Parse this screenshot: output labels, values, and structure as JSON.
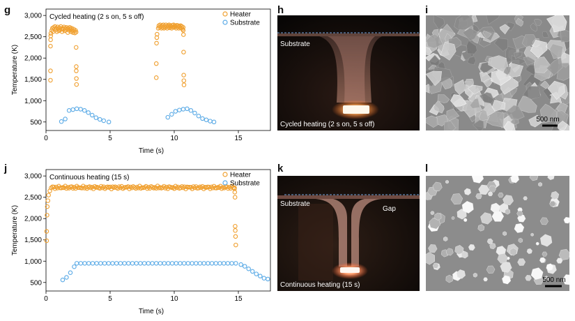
{
  "panels": {
    "g": "g",
    "h": "h",
    "i": "i",
    "j": "j",
    "k": "k",
    "l": "l"
  },
  "colors": {
    "heater": "#f0a030",
    "substrate": "#5aaae6",
    "photo_bg": "#0d0a08",
    "sem_bg": "#8e8e8e"
  },
  "chart_data": [
    {
      "type": "scatter",
      "title": "Cycled heating (2 s on, 5 s off)",
      "xlabel": "Time (s)",
      "ylabel": "Temperature (K)",
      "xlim": [
        0,
        17.5
      ],
      "ylim": [
        300,
        3150
      ],
      "xticks": [
        0,
        5,
        10,
        15
      ],
      "yticks": [
        500,
        1000,
        1500,
        2000,
        2500,
        3000
      ],
      "ytick_labels": [
        "500",
        "1,000",
        "1,500",
        "2,000",
        "2,500",
        "3,000"
      ],
      "legend": "top-right",
      "grid": false,
      "series": [
        {
          "name": "Heater",
          "points": [
            [
              0.35,
              1480
            ],
            [
              0.35,
              1700
            ],
            [
              0.35,
              2280
            ],
            [
              0.36,
              2430
            ],
            [
              0.37,
              2520
            ],
            [
              0.38,
              2580
            ],
            [
              0.45,
              2650
            ],
            [
              0.5,
              2700
            ],
            [
              0.55,
              2620
            ],
            [
              0.6,
              2720
            ],
            [
              0.65,
              2680
            ],
            [
              0.7,
              2740
            ],
            [
              0.75,
              2660
            ],
            [
              0.8,
              2700
            ],
            [
              0.85,
              2620
            ],
            [
              0.9,
              2730
            ],
            [
              0.95,
              2680
            ],
            [
              1.0,
              2640
            ],
            [
              1.05,
              2710
            ],
            [
              1.1,
              2660
            ],
            [
              1.15,
              2740
            ],
            [
              1.2,
              2690
            ],
            [
              1.25,
              2620
            ],
            [
              1.3,
              2700
            ],
            [
              1.35,
              2680
            ],
            [
              1.4,
              2730
            ],
            [
              1.45,
              2640
            ],
            [
              1.5,
              2700
            ],
            [
              1.55,
              2660
            ],
            [
              1.6,
              2720
            ],
            [
              1.65,
              2680
            ],
            [
              1.7,
              2600
            ],
            [
              1.75,
              2700
            ],
            [
              1.8,
              2650
            ],
            [
              1.85,
              2720
            ],
            [
              1.9,
              2680
            ],
            [
              1.95,
              2620
            ],
            [
              2.0,
              2700
            ],
            [
              2.05,
              2650
            ],
            [
              2.1,
              2600
            ],
            [
              2.15,
              2680
            ],
            [
              2.2,
              2640
            ],
            [
              2.25,
              2590
            ],
            [
              2.3,
              2650
            ],
            [
              2.35,
              2610
            ],
            [
              2.35,
              2250
            ],
            [
              2.36,
              1800
            ],
            [
              2.36,
              1700
            ],
            [
              2.37,
              1520
            ],
            [
              2.38,
              1380
            ],
            [
              8.6,
              1540
            ],
            [
              8.6,
              1870
            ],
            [
              8.62,
              2350
            ],
            [
              8.64,
              2480
            ],
            [
              8.66,
              2560
            ],
            [
              8.75,
              2700
            ],
            [
              8.8,
              2760
            ],
            [
              8.85,
              2720
            ],
            [
              8.9,
              2780
            ],
            [
              8.95,
              2740
            ],
            [
              9.0,
              2700
            ],
            [
              9.05,
              2760
            ],
            [
              9.1,
              2720
            ],
            [
              9.15,
              2780
            ],
            [
              9.2,
              2700
            ],
            [
              9.25,
              2750
            ],
            [
              9.3,
              2720
            ],
            [
              9.35,
              2780
            ],
            [
              9.4,
              2740
            ],
            [
              9.45,
              2700
            ],
            [
              9.5,
              2760
            ],
            [
              9.55,
              2730
            ],
            [
              9.6,
              2780
            ],
            [
              9.65,
              2710
            ],
            [
              9.7,
              2760
            ],
            [
              9.75,
              2740
            ],
            [
              9.8,
              2700
            ],
            [
              9.85,
              2770
            ],
            [
              9.9,
              2730
            ],
            [
              9.95,
              2780
            ],
            [
              10.0,
              2720
            ],
            [
              10.05,
              2760
            ],
            [
              10.1,
              2740
            ],
            [
              10.15,
              2700
            ],
            [
              10.2,
              2770
            ],
            [
              10.25,
              2730
            ],
            [
              10.3,
              2760
            ],
            [
              10.35,
              2700
            ],
            [
              10.4,
              2750
            ],
            [
              10.45,
              2720
            ],
            [
              10.5,
              2760
            ],
            [
              10.55,
              2700
            ],
            [
              10.6,
              2740
            ],
            [
              10.65,
              2680
            ],
            [
              10.7,
              2720
            ],
            [
              10.7,
              2650
            ],
            [
              10.72,
              2550
            ],
            [
              10.73,
              2140
            ],
            [
              10.74,
              1600
            ],
            [
              10.75,
              1470
            ],
            [
              10.76,
              1370
            ]
          ]
        },
        {
          "name": "Substrate",
          "points": [
            [
              1.2,
              510
            ],
            [
              1.5,
              570
            ],
            [
              1.8,
              770
            ],
            [
              2.1,
              790
            ],
            [
              2.4,
              810
            ],
            [
              2.7,
              800
            ],
            [
              3.0,
              770
            ],
            [
              3.3,
              720
            ],
            [
              3.6,
              660
            ],
            [
              3.9,
              600
            ],
            [
              4.2,
              560
            ],
            [
              4.5,
              530
            ],
            [
              4.9,
              500
            ],
            [
              9.5,
              610
            ],
            [
              9.8,
              680
            ],
            [
              10.1,
              750
            ],
            [
              10.4,
              780
            ],
            [
              10.7,
              800
            ],
            [
              11.0,
              810
            ],
            [
              11.3,
              770
            ],
            [
              11.6,
              710
            ],
            [
              11.9,
              640
            ],
            [
              12.2,
              580
            ],
            [
              12.5,
              550
            ],
            [
              12.8,
              520
            ],
            [
              13.1,
              500
            ]
          ]
        }
      ]
    },
    {
      "type": "scatter",
      "title": "Continuous heating (15 s)",
      "xlabel": "Time (s)",
      "ylabel": "Temperature (K)",
      "xlim": [
        0,
        17.5
      ],
      "ylim": [
        300,
        3150
      ],
      "xticks": [
        0,
        5,
        10,
        15
      ],
      "yticks": [
        500,
        1000,
        1500,
        2000,
        2500,
        3000
      ],
      "ytick_labels": [
        "500",
        "1,000",
        "1,500",
        "2,000",
        "2,500",
        "3,000"
      ],
      "legend": "top-right",
      "grid": false,
      "heater_plateau": {
        "x_start": 0.5,
        "x_end": 14.7,
        "step": 0.1,
        "y": 2730,
        "jitter": 35
      },
      "substrate_plateau": {
        "x_start": 2.4,
        "x_end": 15.0,
        "step": 0.31,
        "y": 950
      },
      "series": [
        {
          "name": "Heater",
          "points": [
            [
              0.05,
              1480
            ],
            [
              0.05,
              1700
            ],
            [
              0.08,
              2080
            ],
            [
              0.1,
              2280
            ],
            [
              0.15,
              2420
            ],
            [
              0.2,
              2550
            ],
            [
              0.3,
              2650
            ],
            [
              0.4,
              2720
            ],
            [
              14.7,
              2700
            ],
            [
              14.72,
              2620
            ],
            [
              14.74,
              2500
            ],
            [
              14.75,
              1820
            ],
            [
              14.76,
              1720
            ],
            [
              14.78,
              1580
            ],
            [
              14.8,
              1380
            ]
          ]
        },
        {
          "name": "Substrate",
          "points": [
            [
              1.3,
              560
            ],
            [
              1.6,
              620
            ],
            [
              1.9,
              730
            ],
            [
              2.2,
              870
            ],
            [
              15.2,
              920
            ],
            [
              15.5,
              880
            ],
            [
              15.8,
              820
            ],
            [
              16.1,
              760
            ],
            [
              16.4,
              700
            ],
            [
              16.7,
              650
            ],
            [
              17.0,
              600
            ],
            [
              17.3,
              580
            ]
          ]
        }
      ]
    }
  ],
  "photo_h": {
    "substrate_label": "Substrate",
    "caption": "Cycled heating (2 s on, 5 s off)"
  },
  "photo_k": {
    "substrate_label": "Substrate",
    "gap_label": "Gap",
    "caption": "Continuous heating (15 s)"
  },
  "sem_i": {
    "scale_label": "500 nm"
  },
  "sem_l": {
    "scale_label": "500 nm"
  }
}
